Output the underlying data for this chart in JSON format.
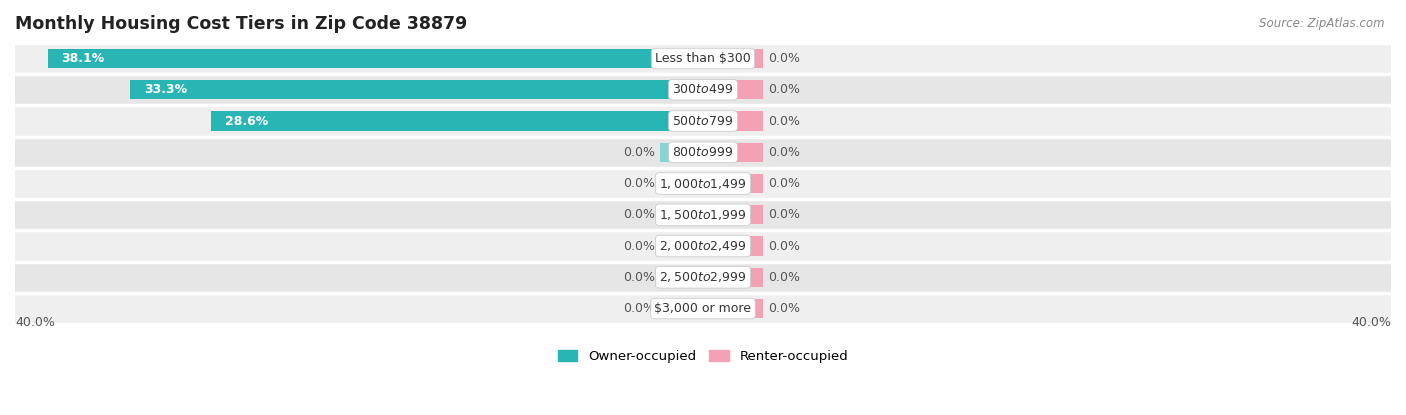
{
  "title": "Monthly Housing Cost Tiers in Zip Code 38879",
  "source": "Source: ZipAtlas.com",
  "categories": [
    "Less than $300",
    "$300 to $499",
    "$500 to $799",
    "$800 to $999",
    "$1,000 to $1,499",
    "$1,500 to $1,999",
    "$2,000 to $2,499",
    "$2,500 to $2,999",
    "$3,000 or more"
  ],
  "owner_values": [
    38.1,
    33.3,
    28.6,
    0.0,
    0.0,
    0.0,
    0.0,
    0.0,
    0.0
  ],
  "renter_values": [
    0.0,
    0.0,
    0.0,
    0.0,
    0.0,
    0.0,
    0.0,
    0.0,
    0.0
  ],
  "owner_color": "#2ab5b5",
  "owner_color_stub": "#88d4d4",
  "renter_color": "#f4a0b5",
  "bg_row_even": "#efefef",
  "bg_row_odd": "#e6e6e6",
  "bg_color": "#ffffff",
  "bar_height": 0.62,
  "max_val": 40.0,
  "label_fontsize": 9.0,
  "tick_fontsize": 9.0,
  "legend_fontsize": 9.5,
  "title_fontsize": 12.5,
  "source_fontsize": 8.5,
  "stub_size": 2.5,
  "renter_stub_size": 3.5
}
